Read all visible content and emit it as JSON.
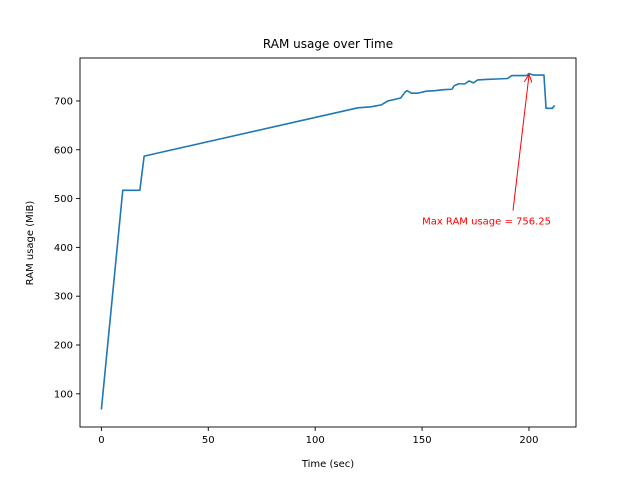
{
  "chart_data": {
    "type": "line",
    "title": "RAM usage over Time",
    "xlabel": "Time (sec)",
    "ylabel": "RAM usage (MiB)",
    "xlim": [
      -10,
      222
    ],
    "ylim": [
      32,
      788
    ],
    "xticks": [
      0,
      50,
      100,
      150,
      200
    ],
    "yticks": [
      100,
      200,
      300,
      400,
      500,
      600,
      700
    ],
    "grid": false,
    "series": [
      {
        "color": "#1f77b4",
        "points": [
          [
            0,
            68
          ],
          [
            10,
            517
          ],
          [
            18,
            517
          ],
          [
            20,
            587
          ],
          [
            120,
            686
          ],
          [
            126,
            688
          ],
          [
            131,
            692
          ],
          [
            134,
            700
          ],
          [
            137,
            703
          ],
          [
            140,
            706
          ],
          [
            142,
            718
          ],
          [
            143,
            721
          ],
          [
            145,
            716
          ],
          [
            148,
            716
          ],
          [
            152,
            720
          ],
          [
            156,
            721
          ],
          [
            160,
            723
          ],
          [
            164,
            724
          ],
          [
            165,
            731
          ],
          [
            167,
            735
          ],
          [
            170,
            735
          ],
          [
            172,
            741
          ],
          [
            174,
            737
          ],
          [
            176,
            743
          ],
          [
            180,
            744
          ],
          [
            185,
            745
          ],
          [
            190,
            746
          ],
          [
            192,
            752
          ],
          [
            199,
            752
          ],
          [
            200,
            756.25
          ],
          [
            202,
            753
          ],
          [
            207,
            753
          ],
          [
            208,
            685
          ],
          [
            211,
            685
          ],
          [
            212,
            691
          ]
        ]
      }
    ],
    "annotations": [
      {
        "text": "Max RAM usage = 756.25",
        "xy": [
          200,
          756.25
        ],
        "text_xy": [
          150,
          455
        ],
        "color": "#ff0000"
      }
    ]
  }
}
